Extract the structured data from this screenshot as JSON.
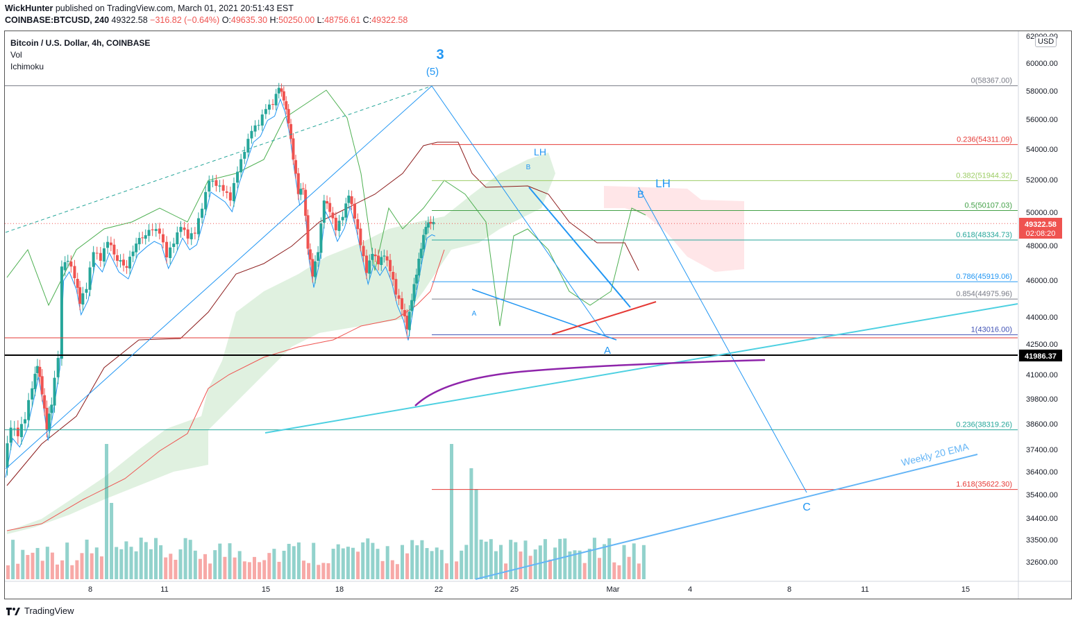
{
  "header": {
    "author": "WickHunter",
    "published": "published on TradingView.com, March 01, 2021 20:51:43 EST",
    "symbol": "COINBASE:BTCUSD, 240",
    "last": "49322.58",
    "change": "−316.82 (−0.64%)",
    "ohlc": {
      "o": "49635.30",
      "h": "50250.00",
      "l": "48756.61",
      "c": "49322.58"
    }
  },
  "legend": {
    "title": "Bitcoin / U.S. Dollar, 4h, COINBASE",
    "items": [
      "Vol",
      "Ichimoku"
    ]
  },
  "axis": {
    "currency": "USD"
  },
  "footer": {
    "brand": "TradingView"
  },
  "colors": {
    "up": "#26a69a",
    "down": "#ef5350",
    "fib_blue": "#2196f3",
    "cloud_green": "#a5d6a7",
    "cloud_red": "#ffcdd2"
  },
  "chart_data": {
    "type": "line",
    "title": "Bitcoin / U.S. Dollar, 4h, COINBASE",
    "price_ticks": [
      "62000.00",
      "60000.00",
      "58000.00",
      "56000.00",
      "54000.00",
      "52000.00",
      "50000.00",
      "48000.00",
      "46000.00",
      "44000.00",
      "42500.00",
      "41000.00",
      "39800.00",
      "38600.00",
      "37400.00",
      "36400.00",
      "35400.00",
      "34400.00",
      "33500.00",
      "32600.00"
    ],
    "date_ticks": [
      "8",
      "11",
      "15",
      "18",
      "22",
      "25",
      "Mar",
      "4",
      "8",
      "11",
      "15"
    ],
    "price_labels": {
      "current": "49322.58",
      "countdown": "02:08:20",
      "line": "41986.37"
    },
    "price_path": [
      {
        "x": 0,
        "y": 36700
      },
      {
        "x": 1.5,
        "y": 38500
      },
      {
        "x": 3,
        "y": 38100
      },
      {
        "x": 4.5,
        "y": 38900
      },
      {
        "x": 6,
        "y": 40400
      },
      {
        "x": 7,
        "y": 41500
      },
      {
        "x": 8,
        "y": 40100
      },
      {
        "x": 9,
        "y": 38400
      },
      {
        "x": 10,
        "y": 39600
      },
      {
        "x": 11.5,
        "y": 41900
      },
      {
        "x": 12.3,
        "y": 46700
      },
      {
        "x": 13.5,
        "y": 47200
      },
      {
        "x": 15,
        "y": 46200
      },
      {
        "x": 16,
        "y": 44800
      },
      {
        "x": 17.5,
        "y": 45600
      },
      {
        "x": 19,
        "y": 47700
      },
      {
        "x": 20.5,
        "y": 47200
      },
      {
        "x": 22,
        "y": 48300
      },
      {
        "x": 24,
        "y": 47200
      },
      {
        "x": 26,
        "y": 46800
      },
      {
        "x": 28,
        "y": 48200
      },
      {
        "x": 30,
        "y": 48700
      },
      {
        "x": 31.5,
        "y": 49000
      },
      {
        "x": 33,
        "y": 48800
      },
      {
        "x": 34.5,
        "y": 47400
      },
      {
        "x": 36,
        "y": 48200
      },
      {
        "x": 37.5,
        "y": 49200
      },
      {
        "x": 39,
        "y": 48500
      },
      {
        "x": 40.5,
        "y": 48800
      },
      {
        "x": 42,
        "y": 50300
      },
      {
        "x": 43.5,
        "y": 52000
      },
      {
        "x": 45,
        "y": 51700
      },
      {
        "x": 46.5,
        "y": 51400
      },
      {
        "x": 48,
        "y": 50800
      },
      {
        "x": 49.5,
        "y": 52600
      },
      {
        "x": 51,
        "y": 53900
      },
      {
        "x": 52.5,
        "y": 55300
      },
      {
        "x": 54,
        "y": 55700
      },
      {
        "x": 55.5,
        "y": 56800
      },
      {
        "x": 57,
        "y": 57100
      },
      {
        "x": 58.2,
        "y": 58300
      },
      {
        "x": 59.2,
        "y": 57400
      },
      {
        "x": 60.2,
        "y": 55800
      },
      {
        "x": 61.2,
        "y": 53400
      },
      {
        "x": 62.3,
        "y": 51200
      },
      {
        "x": 63.3,
        "y": 51500
      },
      {
        "x": 64.3,
        "y": 47900
      },
      {
        "x": 65.3,
        "y": 46300
      },
      {
        "x": 66.5,
        "y": 47700
      },
      {
        "x": 67.8,
        "y": 50800
      },
      {
        "x": 69,
        "y": 50100
      },
      {
        "x": 70.3,
        "y": 49000
      },
      {
        "x": 71.8,
        "y": 49800
      },
      {
        "x": 73,
        "y": 51100
      },
      {
        "x": 74.3,
        "y": 49700
      },
      {
        "x": 75.5,
        "y": 48100
      },
      {
        "x": 76.8,
        "y": 46500
      },
      {
        "x": 78,
        "y": 47600
      },
      {
        "x": 79.3,
        "y": 47000
      },
      {
        "x": 80.5,
        "y": 47500
      },
      {
        "x": 81.8,
        "y": 46600
      },
      {
        "x": 83,
        "y": 45300
      },
      {
        "x": 84.3,
        "y": 44500
      },
      {
        "x": 85.3,
        "y": 43400
      },
      {
        "x": 86.3,
        "y": 45000
      },
      {
        "x": 87.3,
        "y": 46400
      },
      {
        "x": 88.3,
        "y": 47900
      },
      {
        "x": 89.3,
        "y": 49200
      },
      {
        "x": 90.3,
        "y": 49400
      },
      {
        "x": 91,
        "y": 49322
      }
    ],
    "fib_levels": [
      {
        "label": "0(58367.00)",
        "value": 58367,
        "color": "#787b86"
      },
      {
        "label": "0.236(54311.09)",
        "value": 54311,
        "color": "#e53935"
      },
      {
        "label": "0.382(51944.32)",
        "value": 51944,
        "color": "#9ccc65"
      },
      {
        "label": "0.5(50107.03)",
        "value": 50107,
        "color": "#43a047"
      },
      {
        "label": "0.618(48334.73)",
        "value": 48335,
        "color": "#26a69a"
      },
      {
        "label": "0.786(45919.06)",
        "value": 45919,
        "color": "#2196f3"
      },
      {
        "label": "0.854(44975.96)",
        "value": 44976,
        "color": "#787b86"
      },
      {
        "label": "1(43016.00)",
        "value": 43016,
        "color": "#3f51b5"
      },
      {
        "label": "0.236(38319.26)",
        "value": 38319,
        "color": "#26a69a"
      },
      {
        "label": "1.618(35622.30)",
        "value": 35622,
        "color": "#e53935"
      }
    ],
    "annotations": [
      "3",
      "(5)",
      "LH",
      "B",
      "LH",
      "B",
      "A",
      "A",
      "C",
      "Weekly 20 EMA"
    ]
  }
}
